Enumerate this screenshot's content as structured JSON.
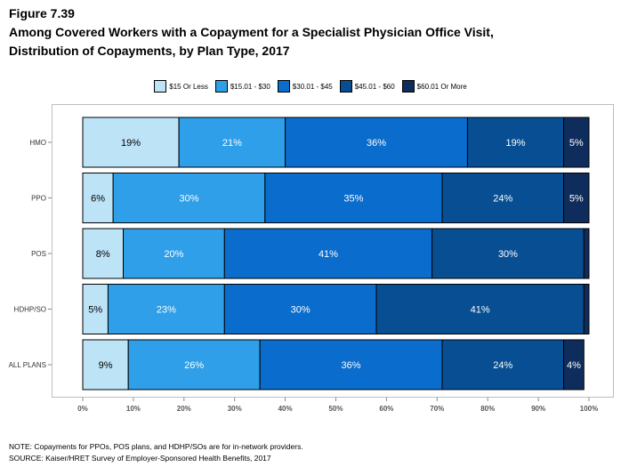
{
  "figure_label": "Figure 7.39",
  "title": "Among Covered Workers with a Copayment for a Specialist Physician Office Visit, Distribution of Copayments, by Plan Type, 2017",
  "note": "NOTE: Copayments for PPOs, POS plans, and HDHP/SOs are for in-network providers.",
  "source": "SOURCE: Kaiser/HRET Survey of Employer-Sponsored Health Benefits, 2017",
  "chart_data": {
    "type": "bar",
    "orientation": "horizontal",
    "stacked": true,
    "categories": [
      "HMO",
      "PPO",
      "POS",
      "HDHP/SO",
      "ALL PLANS"
    ],
    "series": [
      {
        "name": "$15 Or Less",
        "color": "#bde3f7",
        "values": [
          19,
          6,
          8,
          5,
          9
        ],
        "labels": [
          "19%",
          "6%",
          "8%",
          "5%",
          "9%"
        ]
      },
      {
        "name": "$15.01 - $30",
        "color": "#2e9fe8",
        "values": [
          21,
          30,
          20,
          23,
          26
        ],
        "labels": [
          "21%",
          "30%",
          "20%",
          "23%",
          "26%"
        ]
      },
      {
        "name": "$30.01 - $45",
        "color": "#0a6ccc",
        "values": [
          36,
          35,
          41,
          30,
          36
        ],
        "labels": [
          "36%",
          "35%",
          "41%",
          "30%",
          "36%"
        ]
      },
      {
        "name": "$45.01 - $60",
        "color": "#074e93",
        "values": [
          19,
          24,
          30,
          41,
          24
        ],
        "labels": [
          "19%",
          "24%",
          "30%",
          "41%",
          "24%"
        ]
      },
      {
        "name": "$60.01 Or More",
        "color": "#0f2d5c",
        "values": [
          5,
          5,
          1,
          1,
          4
        ],
        "labels": [
          "5%",
          "5%",
          "",
          "",
          "4%"
        ]
      }
    ],
    "xlim": [
      0,
      100
    ],
    "xticks": [
      "0%",
      "10%",
      "20%",
      "30%",
      "40%",
      "50%",
      "60%",
      "70%",
      "80%",
      "90%",
      "100%"
    ],
    "legend_position": "top",
    "grid": false
  }
}
